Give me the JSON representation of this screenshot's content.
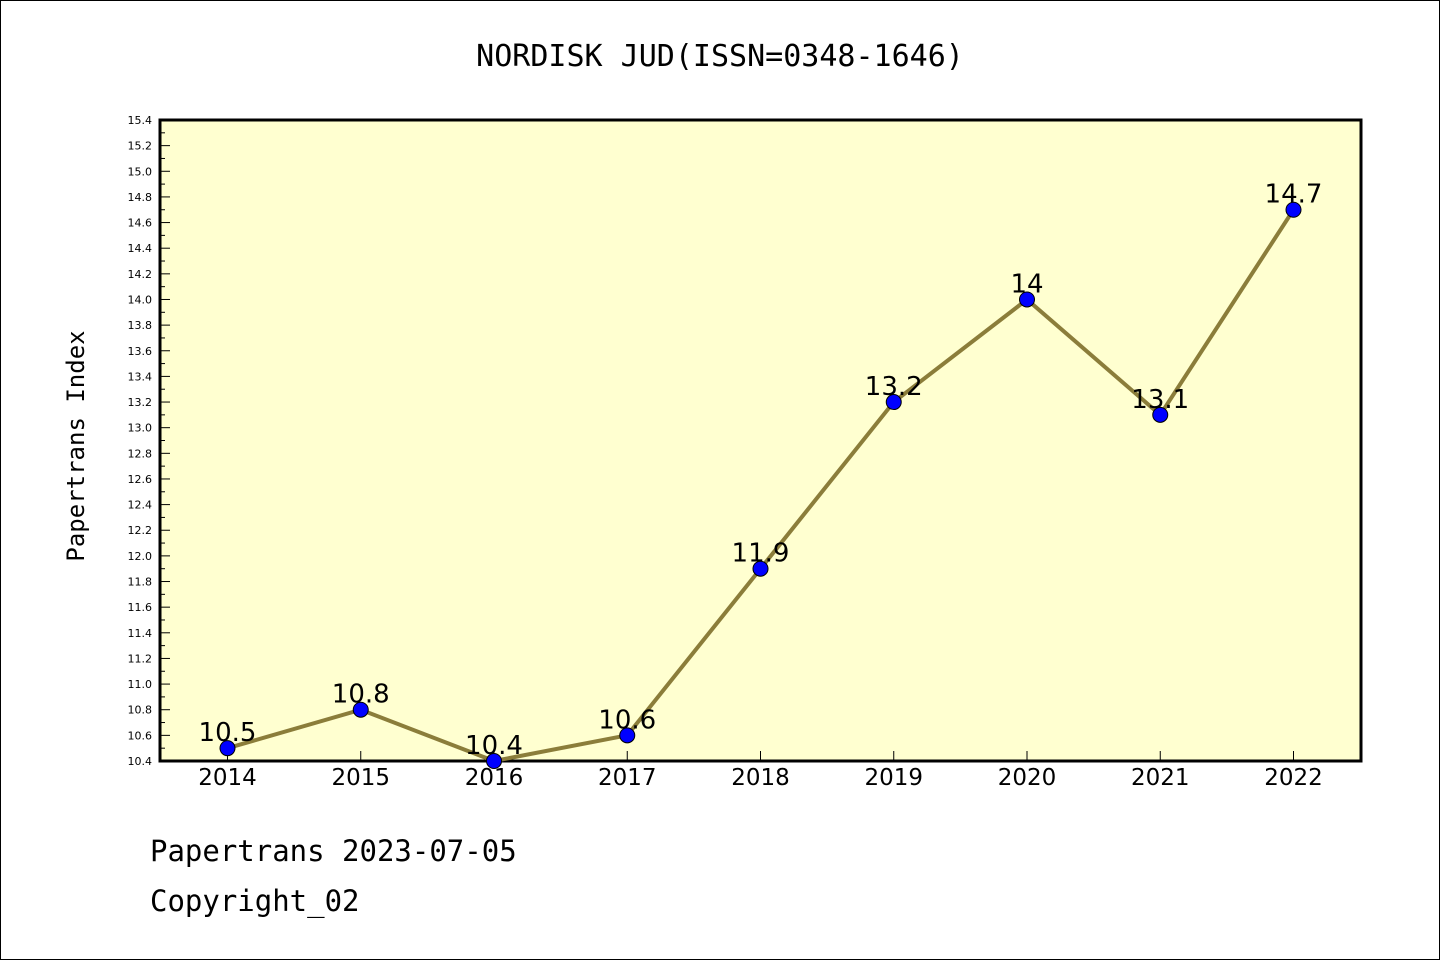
{
  "chart_data": {
    "type": "line",
    "title": "NORDISK JUD(ISSN=0348-1646)",
    "ylabel": "Papertrans Index",
    "xlabel": "",
    "categories": [
      "2014",
      "2015",
      "2016",
      "2017",
      "2018",
      "2019",
      "2020",
      "2021",
      "2022"
    ],
    "series": [
      {
        "values": [
          10.5,
          10.8,
          10.4,
          10.6,
          11.9,
          13.2,
          14.0,
          13.1,
          14.7
        ],
        "labels": [
          "10.5",
          "10.8",
          "10.4",
          "10.6",
          "11.9",
          "13.2",
          "14",
          "13.1",
          "14.7"
        ]
      }
    ],
    "ylim": [
      10.4,
      15.4
    ],
    "yticks": [
      "10.4",
      "10.6",
      "10.8",
      "11.0",
      "11.2",
      "11.4",
      "11.6",
      "11.8",
      "12.0",
      "12.2",
      "12.4",
      "12.6",
      "12.8",
      "13.0",
      "13.2",
      "13.4",
      "13.6",
      "13.8",
      "14.0",
      "14.2",
      "14.4",
      "14.6",
      "14.8",
      "15.0",
      "15.2",
      "15.4"
    ],
    "grid": false,
    "legend": "none",
    "colors": {
      "plot_background": "#FFFFD0",
      "line": "#8B7D3A",
      "marker": "#0000FF"
    }
  },
  "footer": {
    "line1": "Papertrans 2023-07-05",
    "line2": "Copyright_02"
  }
}
